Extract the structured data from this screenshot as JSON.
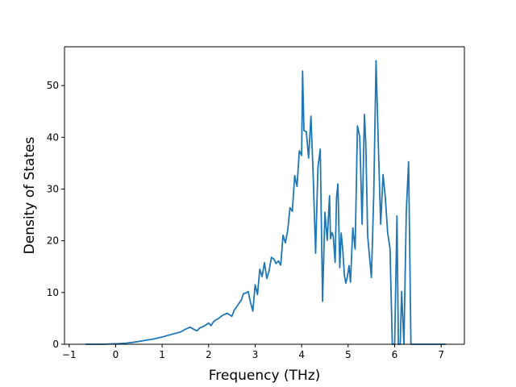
{
  "chart_data": {
    "type": "line",
    "title": "",
    "xlabel": "Frequency (THz)",
    "ylabel": "Density of States",
    "xlim": [
      -1.1,
      7.5
    ],
    "ylim": [
      0,
      57.5
    ],
    "xticks": [
      -1,
      0,
      1,
      2,
      3,
      4,
      5,
      6,
      7
    ],
    "yticks": [
      0,
      10,
      20,
      30,
      40,
      50
    ],
    "grid": false,
    "line_color": "#1f77b4",
    "series": [
      {
        "x": [
          -0.65,
          -0.5,
          -0.3,
          0,
          0.2,
          0.4,
          0.6,
          0.8,
          1.0,
          1.2,
          1.4,
          1.5,
          1.6,
          1.7,
          1.75,
          1.8,
          1.9,
          2.0,
          2.05,
          2.1,
          2.15,
          2.2,
          2.3,
          2.4,
          2.5,
          2.55,
          2.6,
          2.65,
          2.7,
          2.75,
          2.8,
          2.85,
          2.9,
          2.95,
          3.0,
          3.05,
          3.1,
          3.15,
          3.2,
          3.25,
          3.3,
          3.35,
          3.4,
          3.45,
          3.5,
          3.55,
          3.6,
          3.65,
          3.7,
          3.75,
          3.8,
          3.85,
          3.9,
          3.95,
          4.0,
          4.02,
          4.05,
          4.1,
          4.15,
          4.2,
          4.25,
          4.3,
          4.35,
          4.4,
          4.45,
          4.5,
          4.55,
          4.6,
          4.62,
          4.65,
          4.68,
          4.72,
          4.75,
          4.78,
          4.82,
          4.85,
          4.88,
          4.92,
          4.95,
          4.98,
          5.02,
          5.05,
          5.1,
          5.15,
          5.2,
          5.25,
          5.3,
          5.35,
          5.38,
          5.42,
          5.45,
          5.5,
          5.55,
          5.6,
          5.65,
          5.7,
          5.75,
          5.8,
          5.85,
          5.9,
          5.95,
          6.0,
          6.05,
          6.08,
          6.12,
          6.15,
          6.2,
          6.25,
          6.3,
          6.35,
          6.4,
          6.45,
          6.5,
          6.6,
          7.1
        ],
        "y": [
          0,
          0,
          0,
          0.1,
          0.2,
          0.4,
          0.7,
          1.0,
          1.4,
          1.9,
          2.4,
          2.9,
          3.3,
          2.8,
          2.6,
          3.1,
          3.5,
          4.1,
          3.6,
          4.3,
          4.7,
          4.9,
          5.6,
          6.0,
          5.4,
          6.6,
          7.2,
          7.9,
          8.5,
          9.8,
          9.9,
          10.2,
          8.1,
          6.4,
          11.5,
          9.6,
          14.5,
          13.1,
          15.8,
          12.7,
          14.2,
          16.8,
          16.5,
          15.6,
          16.1,
          15.3,
          21.1,
          19.6,
          22.0,
          26.4,
          25.7,
          32.6,
          30.5,
          37.4,
          36.5,
          52.8,
          41.3,
          41.1,
          36.0,
          44.1,
          32.1,
          17.6,
          34.2,
          37.7,
          8.3,
          25.5,
          20.1,
          28.7,
          20.4,
          21.6,
          20.9,
          15.8,
          28.4,
          31.0,
          14.8,
          21.5,
          18.8,
          13.3,
          11.8,
          12.9,
          15.2,
          12.0,
          22.5,
          18.4,
          42.2,
          40.1,
          23.2,
          44.4,
          38.7,
          20.9,
          17.9,
          12.9,
          28.7,
          54.8,
          38.2,
          23.2,
          32.8,
          28.3,
          21.5,
          18.6,
          0,
          0,
          24.8,
          0,
          0,
          10.2,
          0,
          25.6,
          35.3,
          0,
          0,
          0,
          0,
          0,
          0
        ]
      }
    ]
  }
}
